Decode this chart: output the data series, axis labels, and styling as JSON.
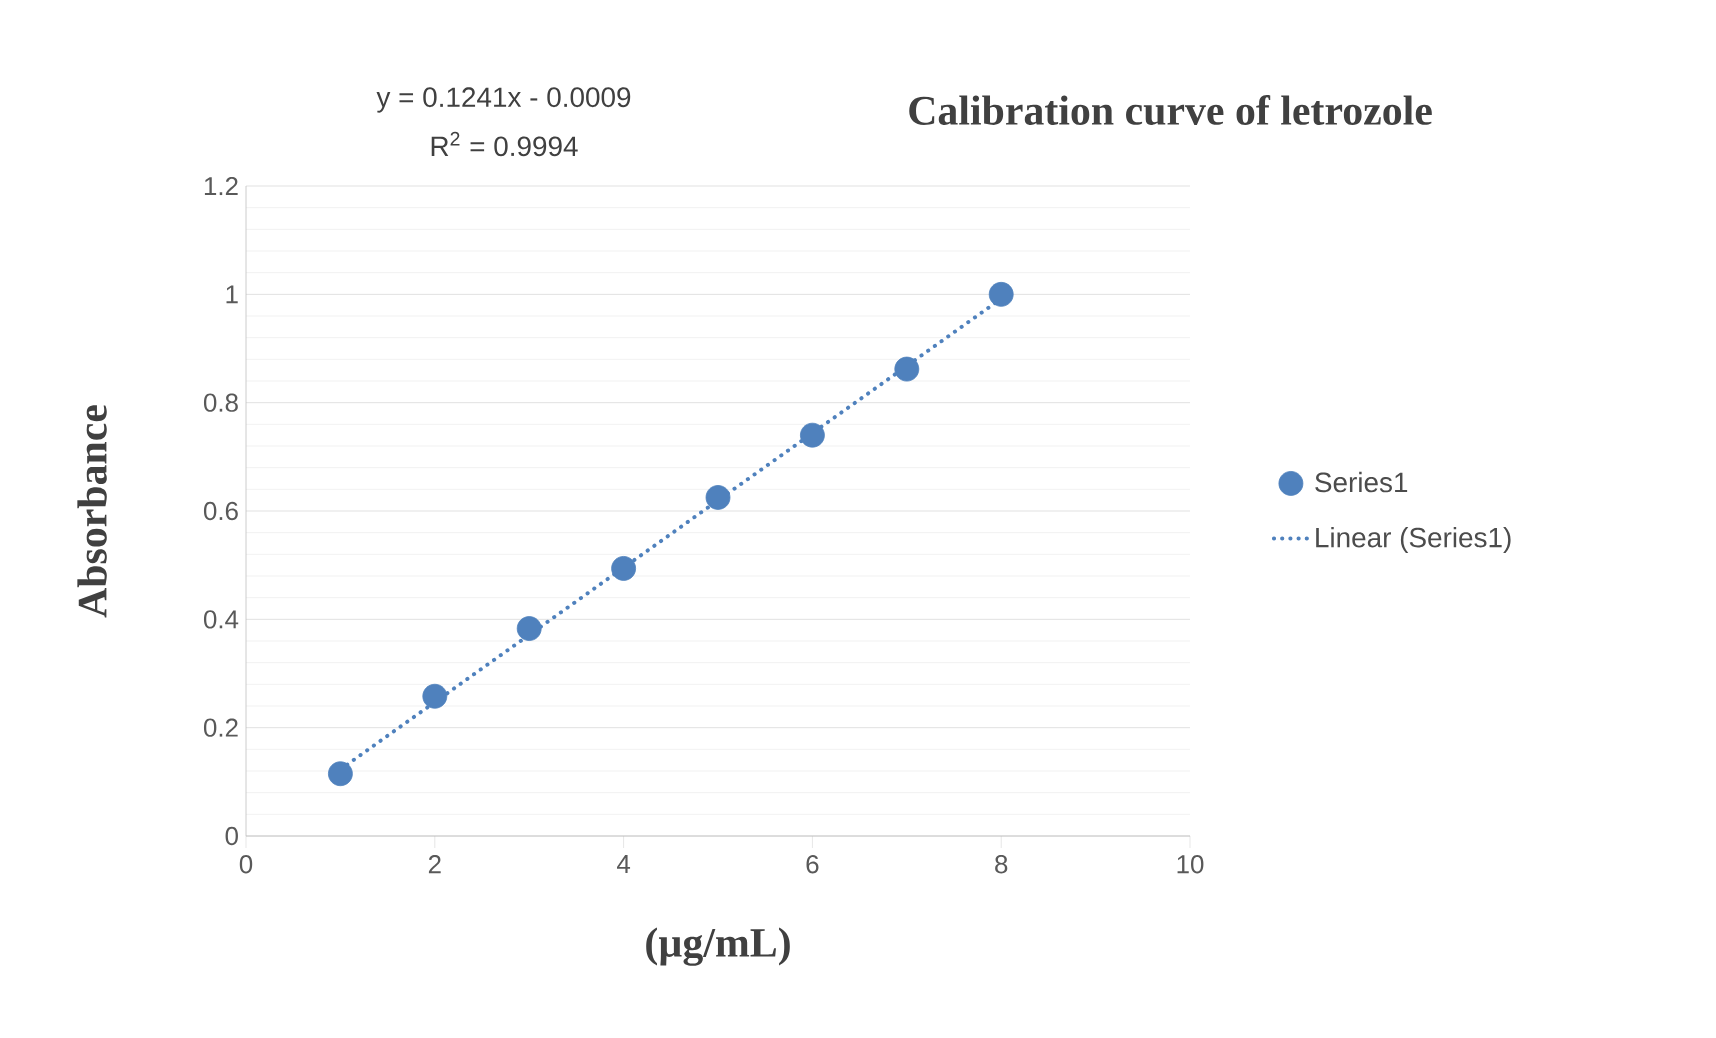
{
  "chart_data": {
    "type": "scatter",
    "title": "Calibration  curve of letrozole",
    "xlabel": "(µg/mL)",
    "ylabel": "Absorbance",
    "xlim": [
      0,
      10
    ],
    "xticks": [
      0,
      2,
      4,
      6,
      8,
      10
    ],
    "ylim": [
      0,
      1.2
    ],
    "yticks": [
      0,
      0.2,
      0.4,
      0.6,
      0.8,
      1,
      1.2
    ],
    "grid": "y",
    "legend": "right",
    "annotations": [
      "y = 0.1241x - 0.0009",
      "R$^{2}$ = 0.9994"
    ],
    "series": [
      {
        "name": "Series1",
        "marker": "circle",
        "color": "#4f81bd",
        "x": [
          1,
          2,
          3,
          4,
          5,
          6,
          7,
          8
        ],
        "values": [
          0.115,
          0.258,
          0.383,
          0.494,
          0.625,
          0.74,
          0.862,
          1.0
        ]
      },
      {
        "name": "Linear (Series1)",
        "type": "line",
        "marker": "none",
        "line_style": "dotted",
        "color": "#4f81bd",
        "x": [
          1,
          8
        ],
        "values": [
          0.123,
          0.992
        ]
      }
    ]
  }
}
